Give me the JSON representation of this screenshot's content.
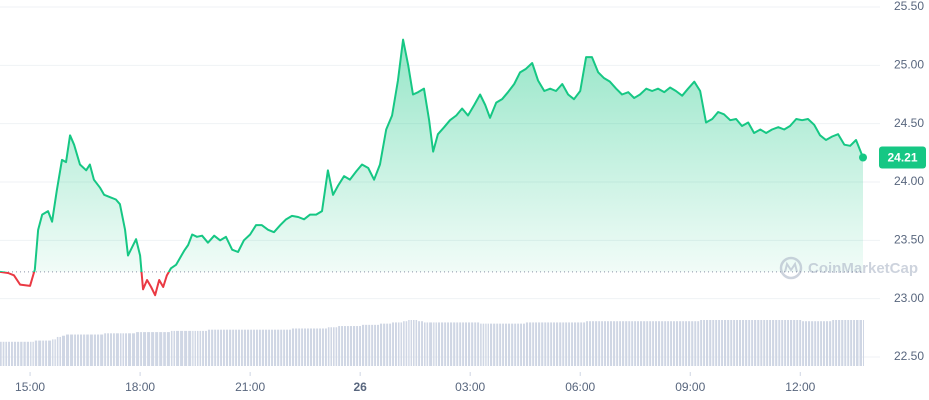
{
  "chart_data": {
    "type": "line",
    "watermark": "CoinMarketCap",
    "xlim": [
      14.18,
      37.71
    ],
    "xticks": [
      {
        "value": 15,
        "label": "15:00"
      },
      {
        "value": 18,
        "label": "18:00"
      },
      {
        "value": 21,
        "label": "21:00"
      },
      {
        "value": 24,
        "label": "26"
      },
      {
        "value": 27,
        "label": "03:00"
      },
      {
        "value": 30,
        "label": "06:00"
      },
      {
        "value": 33,
        "label": "09:00"
      },
      {
        "value": 36,
        "label": "12:00"
      }
    ],
    "ylim": [
      22.5,
      25.5
    ],
    "yticks": [
      {
        "value": 22.5,
        "label": "22.50"
      },
      {
        "value": 23,
        "label": "23.00"
      },
      {
        "value": 23.5,
        "label": "23.50"
      },
      {
        "value": 24,
        "label": "24.00"
      },
      {
        "value": 24.5,
        "label": "24.50"
      },
      {
        "value": 25,
        "label": "25.00"
      },
      {
        "value": 25.5,
        "label": "25.50"
      }
    ],
    "grid": true,
    "baseline": 23.23,
    "up_color": "#16c784",
    "down_color": "#ea3943",
    "volume_color": "#cfd6e4",
    "x": [
      14.18,
      14.4,
      14.56,
      14.73,
      15.0,
      15.13,
      15.22,
      15.33,
      15.49,
      15.6,
      15.73,
      15.87,
      15.98,
      16.09,
      16.2,
      16.36,
      16.53,
      16.63,
      16.74,
      16.91,
      17.02,
      17.18,
      17.34,
      17.45,
      17.59,
      17.67,
      17.78,
      17.89,
      18.0,
      18.08,
      18.19,
      18.3,
      18.41,
      18.52,
      18.63,
      18.73,
      18.84,
      18.98,
      19.09,
      19.2,
      19.31,
      19.42,
      19.55,
      19.69,
      19.85,
      20.02,
      20.18,
      20.34,
      20.51,
      20.67,
      20.83,
      21.0,
      21.16,
      21.32,
      21.49,
      21.65,
      21.82,
      21.98,
      22.14,
      22.31,
      22.47,
      22.63,
      22.8,
      22.96,
      23.12,
      23.26,
      23.4,
      23.56,
      23.72,
      23.89,
      24.05,
      24.22,
      24.38,
      24.54,
      24.71,
      24.87,
      25.03,
      25.17,
      25.31,
      25.44,
      25.58,
      25.74,
      25.88,
      25.99,
      26.12,
      26.29,
      26.45,
      26.62,
      26.78,
      26.94,
      27.11,
      27.27,
      27.41,
      27.54,
      27.71,
      27.87,
      28.03,
      28.2,
      28.36,
      28.52,
      28.69,
      28.85,
      29.02,
      29.18,
      29.34,
      29.51,
      29.67,
      29.83,
      30.0,
      30.16,
      30.32,
      30.49,
      30.65,
      30.81,
      30.98,
      31.14,
      31.31,
      31.47,
      31.63,
      31.8,
      31.96,
      32.12,
      32.29,
      32.45,
      32.61,
      32.78,
      32.94,
      33.11,
      33.27,
      33.43,
      33.6,
      33.76,
      33.92,
      34.09,
      34.25,
      34.41,
      34.58,
      34.74,
      34.91,
      35.07,
      35.23,
      35.4,
      35.56,
      35.72,
      35.89,
      36.05,
      36.21,
      36.38,
      36.54,
      36.7,
      36.87,
      37.03,
      37.2,
      37.36,
      37.52,
      37.71
    ],
    "series": [
      {
        "values": [
          23.23,
          23.22,
          23.2,
          23.12,
          23.11,
          23.25,
          23.59,
          23.72,
          23.75,
          23.66,
          23.93,
          24.19,
          24.17,
          24.4,
          24.32,
          24.15,
          24.1,
          24.15,
          24.02,
          23.95,
          23.89,
          23.87,
          23.85,
          23.81,
          23.59,
          23.37,
          23.44,
          23.51,
          23.37,
          23.08,
          23.16,
          23.1,
          23.03,
          23.16,
          23.1,
          23.2,
          23.26,
          23.29,
          23.35,
          23.41,
          23.46,
          23.55,
          23.53,
          23.54,
          23.48,
          23.54,
          23.5,
          23.53,
          23.42,
          23.4,
          23.5,
          23.55,
          23.63,
          23.63,
          23.59,
          23.57,
          23.63,
          23.68,
          23.71,
          23.7,
          23.68,
          23.72,
          23.72,
          23.75,
          24.1,
          23.89,
          23.97,
          24.05,
          24.02,
          24.09,
          24.15,
          24.12,
          24.02,
          24.15,
          24.45,
          24.57,
          24.87,
          25.22,
          25.0,
          24.75,
          24.77,
          24.8,
          24.53,
          24.26,
          24.41,
          24.47,
          24.53,
          24.57,
          24.63,
          24.57,
          24.66,
          24.75,
          24.66,
          24.55,
          24.68,
          24.71,
          24.77,
          24.84,
          24.94,
          24.97,
          25.02,
          24.87,
          24.78,
          24.8,
          24.78,
          24.84,
          24.75,
          24.71,
          24.78,
          25.07,
          25.07,
          24.94,
          24.89,
          24.86,
          24.8,
          24.75,
          24.77,
          24.72,
          24.75,
          24.8,
          24.78,
          24.8,
          24.77,
          24.81,
          24.78,
          24.74,
          24.8,
          24.86,
          24.78,
          24.51,
          24.54,
          24.6,
          24.58,
          24.53,
          24.54,
          24.48,
          24.51,
          24.42,
          24.45,
          24.42,
          24.45,
          24.47,
          24.45,
          24.48,
          24.54,
          24.53,
          24.54,
          24.49,
          24.4,
          24.36,
          24.39,
          24.41,
          24.32,
          24.31,
          24.36,
          24.21
        ]
      }
    ],
    "volume": [
      20,
      20,
      20,
      20,
      20,
      21,
      21,
      21,
      21,
      22,
      24,
      25,
      26,
      26,
      26,
      26,
      26,
      26,
      26,
      26,
      27,
      27,
      27,
      27,
      27,
      27,
      27,
      28,
      28,
      28,
      28,
      28,
      28,
      28,
      28,
      28,
      29,
      29,
      29,
      29,
      29,
      29,
      29,
      29,
      30,
      30,
      30,
      30,
      30,
      30,
      30,
      30,
      30,
      30,
      30,
      30,
      30,
      30,
      31,
      31,
      31,
      31,
      31,
      31,
      32,
      32,
      33,
      33,
      33,
      33,
      34,
      34,
      34,
      35,
      35,
      36,
      36,
      37,
      38,
      38,
      37,
      36,
      36,
      36,
      36,
      36,
      36,
      36,
      36,
      36,
      36,
      35,
      35,
      35,
      35,
      35,
      35,
      35,
      35,
      36,
      36,
      36,
      36,
      36,
      36,
      36,
      36,
      36,
      36,
      37,
      37,
      37,
      37,
      37,
      37,
      37,
      37,
      37,
      37,
      37,
      37,
      37,
      37,
      37,
      37,
      37,
      37,
      37,
      38,
      38,
      38,
      38,
      38,
      38,
      38,
      38,
      38,
      38,
      38,
      38,
      38,
      38,
      38,
      38,
      38,
      37,
      37,
      37,
      37,
      37,
      38,
      38,
      38,
      38,
      38,
      38
    ]
  }
}
